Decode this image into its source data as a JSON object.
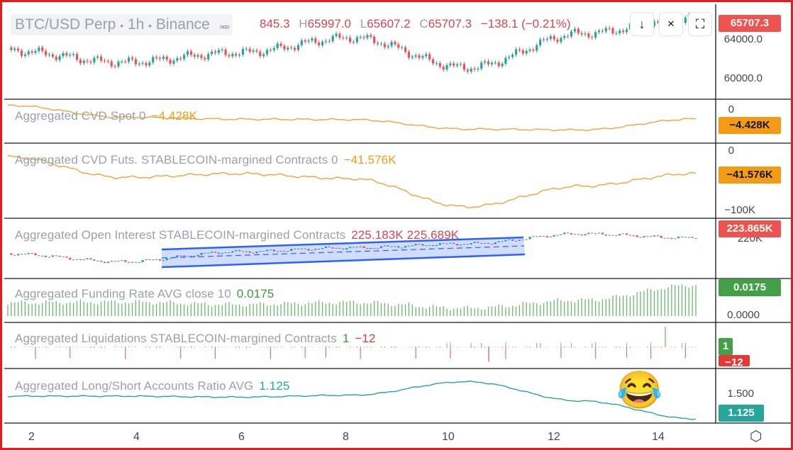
{
  "header": {
    "symbol": "BTC/USD Perp",
    "separator1": "•",
    "interval": "1h",
    "separator2": "•",
    "exchange": "Binance",
    "more": "○○○",
    "open_value": "845.3",
    "high_key": "H",
    "high_value": "65997.0",
    "low_key": "L",
    "low_value": "65607.2",
    "close_key": "C",
    "close_value": "65707.3",
    "change": "−138.1 (−0.21%)"
  },
  "toolbar": {
    "download_icon": "↓",
    "collapse_icon": "✕",
    "fullscreen_icon": "⛶"
  },
  "colors": {
    "up": "#26a69a",
    "down": "#ef5350",
    "orange": "#f0a33a",
    "teal": "#26a69a",
    "green": "#4caf50",
    "red": "#e53935",
    "blue": "#2962ff"
  },
  "panes": [
    {
      "id": "price",
      "title": "",
      "value": "",
      "scale_labels": [
        "64000.0",
        "60000.0"
      ],
      "badge": "65707.3",
      "badge_color": "#ef5350"
    },
    {
      "id": "cvd-spot",
      "title": "Aggregated CVD Spot 0",
      "value": "−4.428K",
      "scale_labels": [
        "0"
      ],
      "badge": "−4.428K",
      "badge_color": "#f59b13"
    },
    {
      "id": "cvd-futs",
      "title": "Aggregated CVD Futs. STABLECOIN-margined Contracts 0",
      "value": "−41.576K",
      "scale_labels": [
        "0",
        "−100K"
      ],
      "badge": "−41.576K",
      "badge_color": "#f59b13"
    },
    {
      "id": "open-interest",
      "title": "Aggregated Open Interest STABLECOIN-margined Contracts",
      "value": "225.183K 225.689K",
      "scale_labels": [
        "220K"
      ],
      "badge": "223.865K",
      "badge_color": "#ef5350"
    },
    {
      "id": "funding",
      "title": "Aggregated Funding Rate AVG close 10",
      "value": "0.0175",
      "scale_labels": [
        "0.0000"
      ],
      "badge": "0.0175",
      "badge_color": "#43a047"
    },
    {
      "id": "liquidations",
      "title": "Aggregated Liquidations STABLECOIN-margined Contracts",
      "value": "1",
      "value2": "−12",
      "scale_labels": [],
      "badge": "1",
      "badge_color": "#43a047",
      "badge2": "−12",
      "badge2_color": "#e53935"
    },
    {
      "id": "ls-ratio",
      "title": "Aggregated Long/Short Accounts Ratio AVG",
      "value": "1.125",
      "scale_labels": [
        "1.500"
      ],
      "badge": "1.125",
      "badge_color": "#26a69a"
    }
  ],
  "annotation": {
    "emoji": "😂",
    "emoji_name": "tears-of-joy-emoji"
  },
  "time_axis": {
    "labels": [
      "2",
      "4",
      "6",
      "8",
      "10",
      "12",
      "14"
    ],
    "settings_icon": "⬡"
  },
  "chart_data": [
    {
      "type": "line",
      "title": "BTC/USD Perp 1h Binance",
      "x": [
        "2",
        "4",
        "6",
        "8",
        "10",
        "12",
        "14"
      ],
      "ylabel": "",
      "ylim": [
        58500,
        66500
      ],
      "series": [
        {
          "values": [
            62600,
            61500,
            62400,
            63800,
            61000,
            64200,
            65707.3
          ]
        }
      ]
    },
    {
      "type": "line",
      "title": "Aggregated CVD Spot 0",
      "ylim": [
        -10000,
        0
      ],
      "series": [
        {
          "values": [
            -1000,
            -4000,
            -4500,
            -4600,
            -7000,
            -7200,
            -4428
          ]
        }
      ]
    },
    {
      "type": "line",
      "title": "Aggregated CVD Futs. STABLECOIN-margined Contracts 0",
      "ylim": [
        -110000,
        0
      ],
      "series": [
        {
          "values": [
            -15000,
            -48000,
            -42000,
            -50000,
            -95000,
            -62000,
            -41576
          ]
        }
      ]
    },
    {
      "type": "line",
      "title": "Aggregated Open Interest STABLECOIN-margined Contracts",
      "ylim": [
        205000,
        232000
      ],
      "series": [
        {
          "values": [
            216000,
            212000,
            217000,
            219000,
            221000,
            226000,
            223865
          ]
        }
      ]
    },
    {
      "type": "bar",
      "title": "Aggregated Funding Rate AVG close 10",
      "ylim": [
        0,
        0.02
      ],
      "series": [
        {
          "values": [
            0.0075,
            0.008,
            0.0065,
            0.0078,
            0.0045,
            0.009,
            0.0175
          ]
        }
      ]
    },
    {
      "type": "bar",
      "title": "Aggregated Liquidations STABLECOIN-margined Contracts",
      "series": [
        {
          "values": [
            -8,
            -5,
            -3,
            -4,
            -10,
            3,
            1
          ]
        }
      ]
    },
    {
      "type": "line",
      "title": "Aggregated Long/Short Accounts Ratio AVG",
      "ylim": [
        1.1,
        2.1
      ],
      "series": [
        {
          "values": [
            1.6,
            1.6,
            1.58,
            1.62,
            1.9,
            1.5,
            1.125
          ]
        }
      ]
    }
  ]
}
